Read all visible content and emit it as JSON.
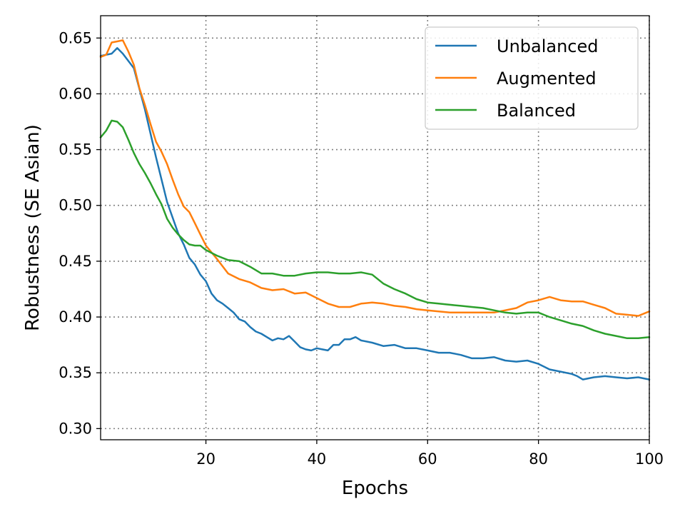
{
  "chart_data": {
    "type": "line",
    "title": "",
    "xlabel": "Epochs",
    "ylabel": "Robustness (SE Asian)",
    "xlim": [
      1,
      100
    ],
    "ylim": [
      0.29,
      0.67
    ],
    "xticks": [
      20,
      40,
      60,
      80,
      100
    ],
    "yticks": [
      0.3,
      0.35,
      0.4,
      0.45,
      0.5,
      0.55,
      0.6,
      0.65
    ],
    "xtick_labels": [
      "20",
      "40",
      "60",
      "80",
      "100"
    ],
    "ytick_labels": [
      "0.30",
      "0.35",
      "0.40",
      "0.45",
      "0.50",
      "0.55",
      "0.60",
      "0.65"
    ],
    "grid": true,
    "legend_position": "top-right",
    "series": [
      {
        "name": "Unbalanced",
        "color": "#1f77b4",
        "x": [
          1,
          3,
          4,
          5,
          7,
          9,
          11,
          13,
          15,
          16,
          17,
          18,
          19,
          20,
          21,
          22,
          23,
          24,
          25,
          26,
          27,
          28,
          29,
          30,
          31,
          32,
          33,
          34,
          35,
          36,
          37,
          38,
          39,
          40,
          41,
          42,
          43,
          44,
          45,
          46,
          47,
          48,
          50,
          52,
          54,
          56,
          58,
          60,
          62,
          64,
          66,
          68,
          70,
          72,
          74,
          76,
          78,
          80,
          82,
          84,
          86,
          87,
          88,
          90,
          92,
          94,
          96,
          98,
          100
        ],
        "y": [
          0.634,
          0.636,
          0.641,
          0.636,
          0.623,
          0.586,
          0.543,
          0.503,
          0.475,
          0.465,
          0.453,
          0.447,
          0.438,
          0.432,
          0.421,
          0.415,
          0.412,
          0.408,
          0.404,
          0.398,
          0.396,
          0.391,
          0.387,
          0.385,
          0.382,
          0.379,
          0.381,
          0.38,
          0.383,
          0.378,
          0.373,
          0.371,
          0.37,
          0.372,
          0.371,
          0.37,
          0.375,
          0.375,
          0.38,
          0.38,
          0.382,
          0.379,
          0.377,
          0.374,
          0.375,
          0.372,
          0.372,
          0.37,
          0.368,
          0.368,
          0.366,
          0.363,
          0.363,
          0.364,
          0.361,
          0.36,
          0.361,
          0.358,
          0.353,
          0.351,
          0.349,
          0.347,
          0.344,
          0.346,
          0.347,
          0.346,
          0.345,
          0.346,
          0.344
        ]
      },
      {
        "name": "Augmented",
        "color": "#ff7f0e",
        "x": [
          1,
          2,
          3,
          4,
          5,
          6,
          7,
          8,
          9,
          10,
          11,
          12,
          13,
          14,
          15,
          16,
          17,
          18,
          19,
          20,
          22,
          24,
          26,
          28,
          30,
          32,
          34,
          36,
          38,
          40,
          42,
          44,
          46,
          48,
          50,
          52,
          54,
          56,
          58,
          60,
          62,
          64,
          66,
          68,
          70,
          72,
          74,
          76,
          78,
          80,
          82,
          84,
          86,
          88,
          90,
          92,
          94,
          96,
          98,
          100
        ],
        "y": [
          0.633,
          0.635,
          0.646,
          0.647,
          0.648,
          0.638,
          0.626,
          0.605,
          0.59,
          0.573,
          0.557,
          0.548,
          0.537,
          0.523,
          0.51,
          0.499,
          0.494,
          0.484,
          0.474,
          0.464,
          0.452,
          0.439,
          0.434,
          0.431,
          0.426,
          0.424,
          0.425,
          0.421,
          0.422,
          0.417,
          0.412,
          0.409,
          0.409,
          0.412,
          0.413,
          0.412,
          0.41,
          0.409,
          0.407,
          0.406,
          0.405,
          0.404,
          0.404,
          0.404,
          0.404,
          0.404,
          0.406,
          0.408,
          0.413,
          0.415,
          0.418,
          0.415,
          0.414,
          0.414,
          0.411,
          0.408,
          0.403,
          0.402,
          0.401,
          0.405
        ]
      },
      {
        "name": "Balanced",
        "color": "#2ca02c",
        "x": [
          1,
          2,
          3,
          4,
          5,
          6,
          7,
          8,
          9,
          10,
          11,
          12,
          13,
          14,
          15,
          16,
          17,
          18,
          19,
          20,
          22,
          24,
          26,
          28,
          30,
          32,
          34,
          36,
          38,
          40,
          42,
          44,
          46,
          48,
          50,
          52,
          54,
          56,
          58,
          60,
          62,
          64,
          66,
          68,
          70,
          72,
          74,
          76,
          78,
          80,
          82,
          84,
          86,
          88,
          90,
          92,
          94,
          96,
          98,
          100
        ],
        "y": [
          0.561,
          0.567,
          0.576,
          0.575,
          0.57,
          0.559,
          0.547,
          0.537,
          0.529,
          0.52,
          0.51,
          0.501,
          0.488,
          0.48,
          0.474,
          0.469,
          0.465,
          0.464,
          0.464,
          0.46,
          0.455,
          0.451,
          0.45,
          0.445,
          0.439,
          0.439,
          0.437,
          0.437,
          0.439,
          0.44,
          0.44,
          0.439,
          0.439,
          0.44,
          0.438,
          0.43,
          0.425,
          0.421,
          0.416,
          0.413,
          0.412,
          0.411,
          0.41,
          0.409,
          0.408,
          0.406,
          0.404,
          0.403,
          0.404,
          0.404,
          0.4,
          0.397,
          0.394,
          0.392,
          0.388,
          0.385,
          0.383,
          0.381,
          0.381,
          0.382
        ]
      }
    ]
  }
}
